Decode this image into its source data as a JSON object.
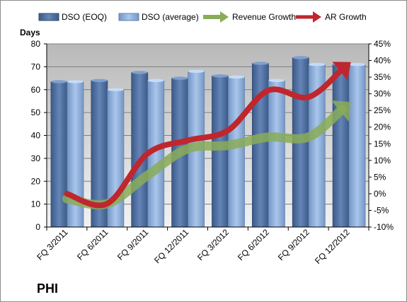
{
  "chart_data": {
    "type": "bar",
    "title": "",
    "ticker": "PHI",
    "y_left_label": "Days",
    "y_left_lim": [
      0,
      80
    ],
    "y_left_ticks": [
      "0",
      "10",
      "20",
      "30",
      "40",
      "50",
      "60",
      "70",
      "80"
    ],
    "y_right_lim": [
      -10,
      45
    ],
    "y_right_ticks": [
      "-10%",
      "-5%",
      "0%",
      "5%",
      "10%",
      "15%",
      "20%",
      "25%",
      "30%",
      "35%",
      "40%",
      "45%"
    ],
    "categories": [
      "FQ 3/2011",
      "FQ 6/2011",
      "FQ 9/2011",
      "FQ 12/2011",
      "FQ 3/2012",
      "FQ 6/2012",
      "FQ 9/2012",
      "FQ 12/2012"
    ],
    "legend_position": "top",
    "grid": "horizontal",
    "series": [
      {
        "name": "DSO (EOQ)",
        "type": "bar",
        "axis": "left",
        "color": "#4f6f9f",
        "values": [
          63.5,
          64,
          67.5,
          65,
          66,
          71.5,
          74,
          71
        ]
      },
      {
        "name": "DSO (average)",
        "type": "bar",
        "axis": "left",
        "color": "#8fb0dc",
        "values": [
          63.5,
          60,
          64,
          68,
          65.5,
          64,
          71,
          71
        ]
      },
      {
        "name": "Revenue Growth",
        "type": "arrow-line",
        "axis": "right",
        "color": "#8aac58",
        "values": [
          -1.5,
          -3,
          5.5,
          13.5,
          14.5,
          17,
          17,
          27
        ]
      },
      {
        "name": "AR Growth",
        "type": "arrow-line",
        "axis": "right",
        "color": "#c0262d",
        "values": [
          0,
          -3,
          12,
          16,
          19,
          31,
          29,
          39
        ]
      }
    ]
  }
}
